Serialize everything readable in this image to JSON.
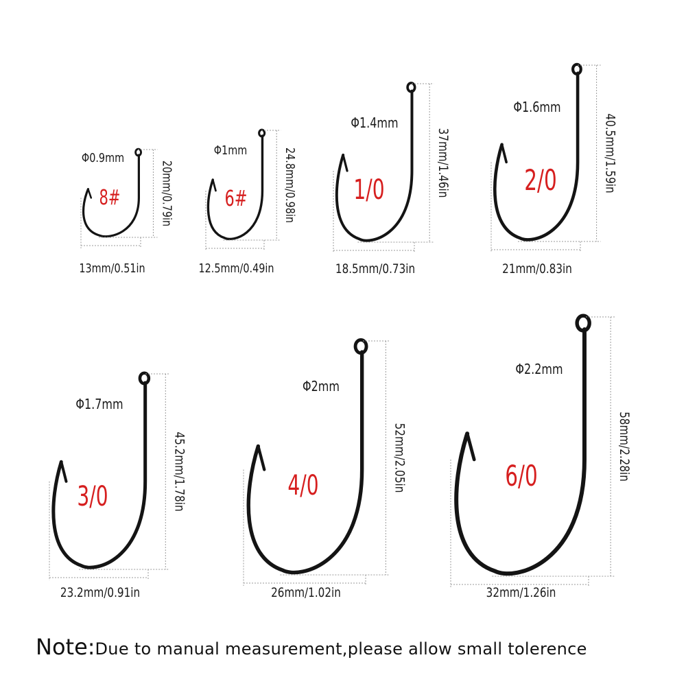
{
  "colors": {
    "hook": "#141414",
    "size_label": "#d61f1f",
    "text": "#1a1a1a",
    "guide": "#9a9a9a"
  },
  "hooks": [
    {
      "name": "8#",
      "diameter": "Φ0.9mm",
      "length": "20mm/0.79in",
      "width": "13mm/0.51in"
    },
    {
      "name": "6#",
      "diameter": "Φ1mm",
      "length": "24.8mm/0.98in",
      "width": "12.5mm/0.49in"
    },
    {
      "name": "1/0",
      "diameter": "Φ1.4mm",
      "length": "37mm/1.46in",
      "width": "18.5mm/0.73in"
    },
    {
      "name": "2/0",
      "diameter": "Φ1.6mm",
      "length": "40.5mm/1.59in",
      "width": "21mm/0.83in"
    },
    {
      "name": "3/0",
      "diameter": "Φ1.7mm",
      "length": "45.2mm/1.78in",
      "width": "23.2mm/0.91in"
    },
    {
      "name": "4/0",
      "diameter": "Φ2mm",
      "length": "52mm/2.05in",
      "width": "26mm/1.02in"
    },
    {
      "name": "6/0",
      "diameter": "Φ2.2mm",
      "length": "58mm/2.28in",
      "width": "32mm/1.26in"
    }
  ],
  "note": {
    "lead": "Note:",
    "text": "Due to manual measurement,please allow small tolerence"
  }
}
